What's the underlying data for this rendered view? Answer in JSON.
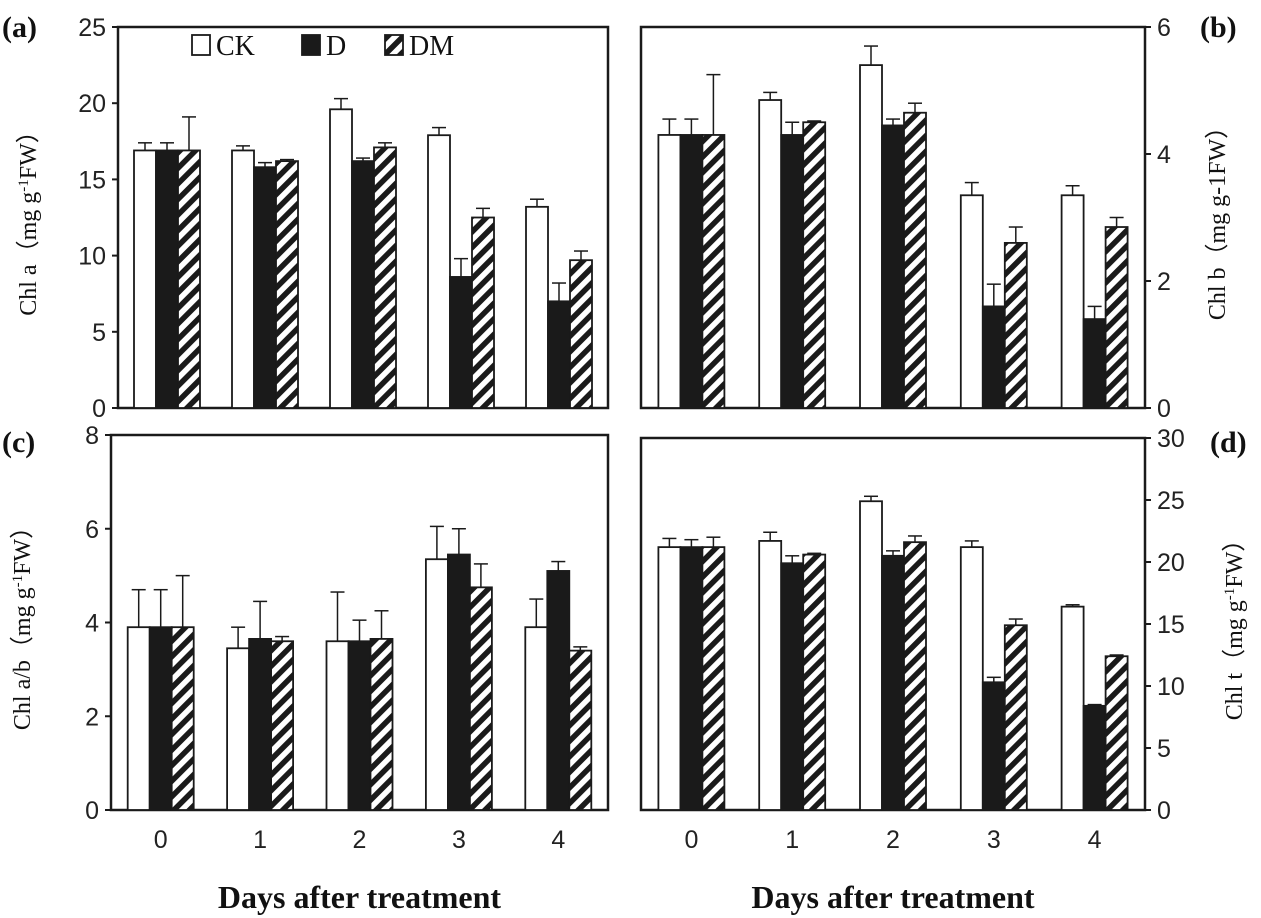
{
  "legend": [
    {
      "key": "CK",
      "label": "CK"
    },
    {
      "key": "D",
      "label": "D"
    },
    {
      "key": "DM",
      "label": "DM"
    }
  ],
  "colors": {
    "CK": "#ffffff",
    "D": "#1a1a1a",
    "DM": "hatch",
    "frame": "#1a1a1a"
  },
  "chart_data": [
    {
      "panel": "(a)",
      "type": "bar",
      "ylabel": "Chl a（mg g-1FW）",
      "ylabel_main": "Chl a（mg g",
      "ylabel_sup": "-1",
      "ylabel_tail": "FW）",
      "xlabel": "",
      "yaxis_side": "left",
      "ylim": [
        0,
        25
      ],
      "yticks": [
        "0",
        "5",
        "10",
        "15",
        "20",
        "25"
      ],
      "categories": [
        "0",
        "1",
        "2",
        "3",
        "4"
      ],
      "show_xticks": false,
      "series": [
        {
          "name": "CK",
          "values": [
            16.9,
            16.9,
            19.6,
            17.9,
            13.2
          ],
          "errors": [
            0.5,
            0.3,
            0.7,
            0.5,
            0.5
          ]
        },
        {
          "name": "D",
          "values": [
            16.9,
            15.8,
            16.2,
            8.6,
            7.0
          ],
          "errors": [
            0.5,
            0.3,
            0.2,
            1.2,
            1.2
          ]
        },
        {
          "name": "DM",
          "values": [
            16.9,
            16.2,
            17.1,
            12.5,
            9.7
          ],
          "errors": [
            2.2,
            0.1,
            0.3,
            0.6,
            0.6
          ]
        }
      ]
    },
    {
      "panel": "(b)",
      "type": "bar",
      "ylabel": "Chl b（mg g-1FW）",
      "ylabel_main": "Chl b（mg g-1FW）",
      "ylabel_sup": "",
      "ylabel_tail": "",
      "xlabel": "",
      "yaxis_side": "right",
      "ylim": [
        0,
        6
      ],
      "yticks": [
        "0",
        "2",
        "4",
        "6"
      ],
      "categories": [
        "0",
        "1",
        "2",
        "3",
        "4"
      ],
      "show_xticks": false,
      "series": [
        {
          "name": "CK",
          "values": [
            4.3,
            4.85,
            5.4,
            3.35,
            3.35
          ],
          "errors": [
            0.25,
            0.12,
            0.3,
            0.2,
            0.15
          ]
        },
        {
          "name": "D",
          "values": [
            4.3,
            4.3,
            4.45,
            1.6,
            1.4
          ],
          "errors": [
            0.25,
            0.2,
            0.1,
            0.35,
            0.2
          ]
        },
        {
          "name": "DM",
          "values": [
            4.3,
            4.5,
            4.65,
            2.6,
            2.85
          ],
          "errors": [
            0.95,
            0.02,
            0.15,
            0.25,
            0.15
          ]
        }
      ]
    },
    {
      "panel": "(c)",
      "type": "bar",
      "ylabel": "Chl a/b（mg g-1FW）",
      "ylabel_main": "Chl a/b（mg g",
      "ylabel_sup": "-1",
      "ylabel_tail": "FW）",
      "xlabel": "Days after treatment",
      "yaxis_side": "left",
      "ylim": [
        0,
        8
      ],
      "yticks": [
        "0",
        "2",
        "4",
        "6",
        "8"
      ],
      "categories": [
        "0",
        "1",
        "2",
        "3",
        "4"
      ],
      "show_xticks": true,
      "series": [
        {
          "name": "CK",
          "values": [
            3.9,
            3.45,
            3.6,
            5.35,
            3.9
          ],
          "errors": [
            0.8,
            0.45,
            1.05,
            0.7,
            0.6
          ]
        },
        {
          "name": "D",
          "values": [
            3.9,
            3.65,
            3.6,
            5.45,
            5.1
          ],
          "errors": [
            0.8,
            0.8,
            0.45,
            0.55,
            0.2
          ]
        },
        {
          "name": "DM",
          "values": [
            3.9,
            3.6,
            3.65,
            4.75,
            3.4
          ],
          "errors": [
            1.1,
            0.1,
            0.6,
            0.5,
            0.08
          ]
        }
      ]
    },
    {
      "panel": "(d)",
      "type": "bar",
      "ylabel": "Chl t（mg g-1FW）",
      "ylabel_main": "Chl t（mg g",
      "ylabel_sup": "-1",
      "ylabel_tail": "FW）",
      "xlabel": "Days after treatment",
      "yaxis_side": "right",
      "ylim": [
        0,
        30
      ],
      "yticks": [
        "0",
        "5",
        "10",
        "15",
        "20",
        "25",
        "30"
      ],
      "categories": [
        "0",
        "1",
        "2",
        "3",
        "4"
      ],
      "show_xticks": true,
      "series": [
        {
          "name": "CK",
          "values": [
            21.2,
            21.7,
            24.9,
            21.2,
            16.4
          ],
          "errors": [
            0.7,
            0.7,
            0.4,
            0.5,
            0.15
          ]
        },
        {
          "name": "D",
          "values": [
            21.2,
            19.9,
            20.5,
            10.3,
            8.4
          ],
          "errors": [
            0.6,
            0.6,
            0.4,
            0.4,
            0.1
          ]
        },
        {
          "name": "DM",
          "values": [
            21.2,
            20.6,
            21.6,
            14.9,
            12.4
          ],
          "errors": [
            0.8,
            0.1,
            0.5,
            0.5,
            0.1
          ]
        }
      ]
    }
  ]
}
